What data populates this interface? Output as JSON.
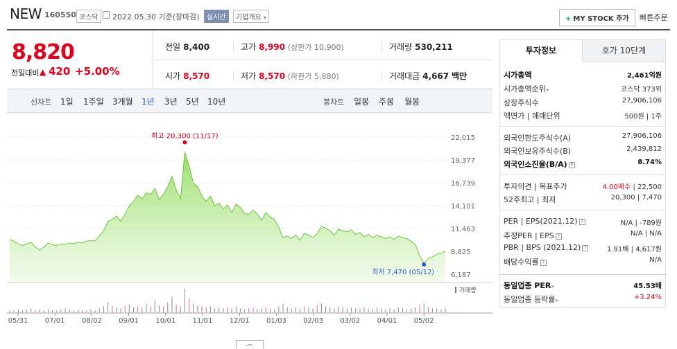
{
  "header": {
    "name": "NEW",
    "code": "160550",
    "market": "코스닥",
    "date_text": "2022.05.30 기준(장마감)",
    "realtime": "실시간",
    "biz_info": "기업개요",
    "mystock": "MY STOCK 추가",
    "quick_order": "빠른주문"
  },
  "price": {
    "current": "8,820",
    "cmp_label": "전일대비",
    "change": "420",
    "change_pct": "+5.00%",
    "accent": "#e0001b"
  },
  "stats": {
    "prev_label": "전일",
    "prev": "8,400",
    "high_label": "고가",
    "high": "8,990",
    "upper_limit": "(상한가 10,900)",
    "volume_label": "거래량",
    "volume": "530,211",
    "open_label": "시가",
    "open": "8,570",
    "low_label": "저가",
    "low": "8,570",
    "lower_limit": "(하한가 5,880)",
    "amount_label": "거래대금",
    "amount": "4,667",
    "amount_unit": "백만"
  },
  "periods": {
    "line_label": "선차트",
    "line": [
      "1일",
      "1주일",
      "3개월",
      "1년",
      "3년",
      "5년",
      "10년"
    ],
    "selected": "1년",
    "candle_label": "봉차트",
    "candle": [
      "일봉",
      "주봉",
      "월봉"
    ]
  },
  "chart_data": {
    "type": "area",
    "x_ticks": [
      "05/31",
      "07/01",
      "08/02",
      "09/01",
      "10/01",
      "11/01",
      "12/01",
      "01/03",
      "02/03",
      "03/02",
      "04/01",
      "05/02"
    ],
    "y_ticks": [
      "22,015",
      "19,377",
      "16,739",
      "14,101",
      "11,463",
      "8,825",
      "6,187"
    ],
    "ylim": [
      6187,
      22015
    ],
    "max_label": "최고 20,300 (11/17)",
    "min_label": "최저 7,470 (05/12)",
    "max_value": 20300,
    "min_value": 7470,
    "volume_label": "거래량",
    "values": [
      10200,
      10000,
      9700,
      9500,
      9700,
      9900,
      9300,
      9000,
      9300,
      9800,
      9600,
      9500,
      9700,
      9600,
      9800,
      9700,
      9900,
      9800,
      10000,
      10100,
      10000,
      10600,
      11200,
      12300,
      12500,
      12900,
      12300,
      13100,
      14100,
      14600,
      15300,
      14900,
      15600,
      15400,
      16100,
      14800,
      15400,
      16300,
      17500,
      15900,
      14900,
      20300,
      18700,
      16700,
      16300,
      15200,
      14600,
      15200,
      14100,
      14400,
      13700,
      14200,
      13300,
      14300,
      13900,
      13200,
      13100,
      13600,
      13100,
      12400,
      13300,
      12800,
      12500,
      11600,
      10400,
      10600,
      10300,
      10700,
      10100,
      10900,
      10700,
      10400,
      10900,
      11700,
      11500,
      11200,
      10700,
      11400,
      11200,
      11100,
      11300,
      10800,
      11000,
      10500,
      10800,
      10400,
      10700,
      10500,
      10300,
      10500,
      10200,
      10600,
      10400,
      10300,
      10000,
      9600,
      8300,
      7470,
      8000,
      8200,
      8500,
      8600,
      8820
    ],
    "volumes": [
      2,
      2,
      3,
      2,
      3,
      4,
      2,
      3,
      2,
      3,
      2,
      2,
      3,
      4,
      3,
      2,
      3,
      2,
      2,
      3,
      2,
      4,
      6,
      10,
      7,
      5,
      4,
      6,
      8,
      5,
      6,
      5,
      9,
      6,
      12,
      7,
      6,
      10,
      16,
      8,
      6,
      24,
      14,
      9,
      7,
      6,
      5,
      6,
      4,
      5,
      4,
      5,
      4,
      6,
      4,
      3,
      4,
      5,
      3,
      4,
      5,
      4,
      3,
      6,
      9,
      5,
      4,
      5,
      4,
      6,
      5,
      4,
      7,
      9,
      6,
      5,
      4,
      6,
      5,
      4,
      5,
      4,
      4,
      5,
      4,
      3,
      5,
      4,
      3,
      4,
      3,
      5,
      4,
      3,
      4,
      5,
      8,
      9,
      5,
      4,
      4,
      3,
      4
    ]
  },
  "tabs": {
    "invest": "투자정보",
    "hoga": "호가 10단계"
  },
  "invest": {
    "mcap_label": "시가총액",
    "mcap": "2,461억원",
    "mcap_rank_label": "시가총액순위",
    "mcap_rank": "코스닥 373위",
    "shares_label": "상장주식수",
    "shares": "27,906,106",
    "par_label": "액면가",
    "trade_unit_label": "매매단위",
    "par": "500원",
    "trade_unit": "1주",
    "foreign_limit_label": "외국인한도주식수(A)",
    "foreign_limit": "27,906,106",
    "foreign_hold_label": "외국인보유주식수(B)",
    "foreign_hold": "2,439,812",
    "foreign_ratio_label": "외국인소진율(B/A)",
    "foreign_ratio": "8.74%",
    "opinion_label": "투자의견",
    "target_label": "목표주가",
    "opinion": "4.00매수",
    "target": "22,500",
    "w52_label": "52주최고",
    "w52_low_label": "최저",
    "w52_high": "20,300",
    "w52_low": "7,470",
    "per_label": "PER",
    "eps_label": "EPS(2021.12)",
    "per": "N/A",
    "eps": "-789원",
    "est_per_label": "추정PER",
    "est_eps_label": "EPS",
    "est_per": "N/A",
    "est_eps": "N/A",
    "pbr_label": "PBR",
    "bps_label": "BPS (2021.12)",
    "pbr": "1.91배",
    "bps": "4,617원",
    "div_label": "배당수익률",
    "div": "N/A",
    "ind_per_label": "동일업종 PER",
    "ind_per": "45.53배",
    "ind_rate_label": "동일업종 등락률",
    "ind_rate": "+3.24%"
  }
}
